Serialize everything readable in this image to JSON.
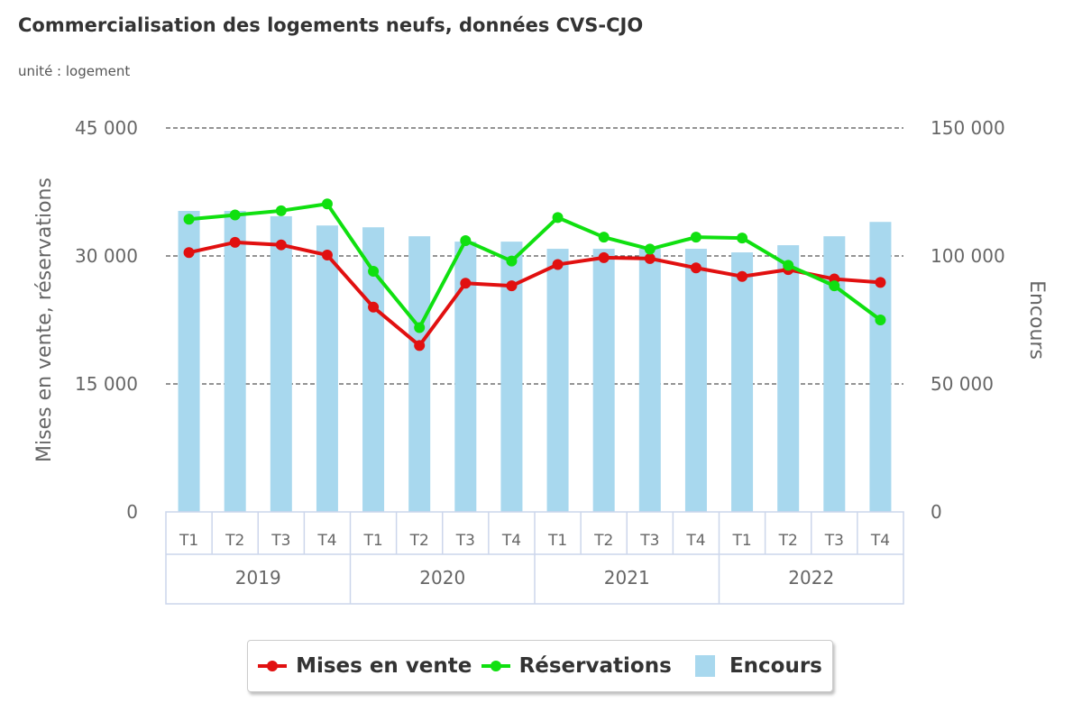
{
  "header": {
    "title": "Commercialisation des logements neufs, données CVS-CJO",
    "subtitle": "unité : logement"
  },
  "legend": {
    "items": [
      {
        "label": "Mises en vente",
        "color": "#e11010",
        "kind": "line"
      },
      {
        "label": "Réservations",
        "color": "#10e010",
        "kind": "line"
      },
      {
        "label": "Encours",
        "color": "#a8d8ee",
        "kind": "bar"
      }
    ]
  },
  "chart_data": {
    "type": "bar",
    "title": "Commercialisation des logements neufs, données CVS-CJO",
    "subtitle": "unité : logement",
    "categories": [
      "T1",
      "T2",
      "T3",
      "T4",
      "T1",
      "T2",
      "T3",
      "T4",
      "T1",
      "T2",
      "T3",
      "T4",
      "T1",
      "T2",
      "T3",
      "T4"
    ],
    "groups": [
      {
        "label": "2019",
        "span": 4
      },
      {
        "label": "2020",
        "span": 4
      },
      {
        "label": "2021",
        "span": 4
      },
      {
        "label": "2022",
        "span": 4
      }
    ],
    "y_left": {
      "label": "Mises en vente, réservations",
      "range": [
        0,
        45000
      ],
      "ticks": [
        0,
        15000,
        30000,
        45000
      ],
      "tick_labels": [
        "0",
        "15 000",
        "30 000",
        "45 000"
      ]
    },
    "y_right": {
      "label": "Encours",
      "range": [
        0,
        150000
      ],
      "ticks": [
        0,
        50000,
        100000,
        150000
      ],
      "tick_labels": [
        "0",
        "50 000",
        "100 000",
        "150 000"
      ]
    },
    "grid": true,
    "legend_position": "bottom-center",
    "series": [
      {
        "name": "Encours",
        "type": "bar",
        "axis": "right",
        "color": "#a8d8ee",
        "values": [
          117600,
          117600,
          115500,
          111900,
          111200,
          107700,
          105600,
          105600,
          102800,
          102800,
          102800,
          102800,
          101400,
          104200,
          107700,
          113300
        ]
      },
      {
        "name": "Mises en vente",
        "type": "line",
        "axis": "left",
        "color": "#e11010",
        "values": [
          30400,
          31600,
          31300,
          30100,
          24000,
          19500,
          26800,
          26500,
          29000,
          29800,
          29700,
          28600,
          27600,
          28400,
          27300,
          26900
        ]
      },
      {
        "name": "Réservations",
        "type": "line",
        "axis": "left",
        "color": "#10e010",
        "values": [
          34300,
          34800,
          35300,
          36100,
          28200,
          21600,
          31800,
          29400,
          34500,
          32200,
          30800,
          32200,
          32100,
          28900,
          26500,
          22500
        ]
      }
    ]
  }
}
